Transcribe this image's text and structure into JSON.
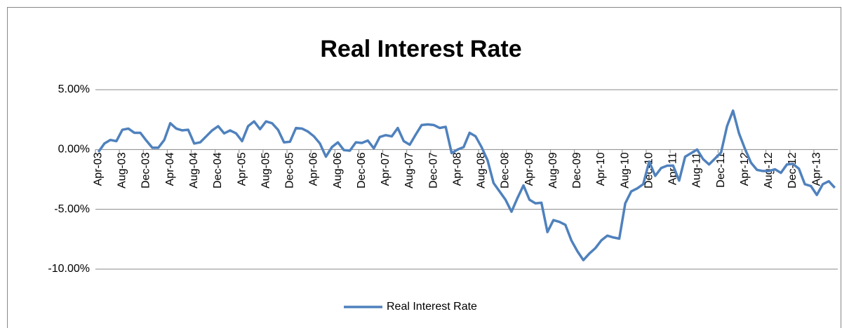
{
  "chart_data": {
    "type": "line",
    "title": "Real Interest Rate",
    "categories": [
      "Apr-03",
      null,
      null,
      null,
      "Aug-03",
      null,
      null,
      null,
      "Dec-03",
      null,
      null,
      null,
      "Apr-04",
      null,
      null,
      null,
      "Aug-04",
      null,
      null,
      null,
      "Dec-04",
      null,
      null,
      null,
      "Apr-05",
      null,
      null,
      null,
      "Aug-05",
      null,
      null,
      null,
      "Dec-05",
      null,
      null,
      null,
      "Apr-06",
      null,
      null,
      null,
      "Aug-06",
      null,
      null,
      null,
      "Dec-06",
      null,
      null,
      null,
      "Apr-07",
      null,
      null,
      null,
      "Aug-07",
      null,
      null,
      null,
      "Dec-07",
      null,
      null,
      null,
      "Apr-08",
      null,
      null,
      null,
      "Aug-08",
      null,
      null,
      null,
      "Dec-08",
      null,
      null,
      null,
      "Apr-09",
      null,
      null,
      null,
      "Aug-09",
      null,
      null,
      null,
      "Dec-09",
      null,
      null,
      null,
      "Apr-10",
      null,
      null,
      null,
      "Aug-10",
      null,
      null,
      null,
      "Dec-10",
      null,
      null,
      null,
      "Apr-11",
      null,
      null,
      null,
      "Aug-11",
      null,
      null,
      null,
      "Dec-11",
      null,
      null,
      null,
      "Apr-12",
      null,
      null,
      null,
      "Aug-12",
      null,
      null,
      null,
      "Dec-12",
      null,
      null,
      null,
      "Apr-13",
      null,
      null,
      null
    ],
    "series": [
      {
        "name": "Real Interest Rate",
        "color": "#4f81bd",
        "values": [
          -0.2,
          0.5,
          0.8,
          0.7,
          1.65,
          1.75,
          1.4,
          1.4,
          0.75,
          0.15,
          0.15,
          0.8,
          2.2,
          1.75,
          1.6,
          1.65,
          0.5,
          0.6,
          1.1,
          1.6,
          1.95,
          1.35,
          1.6,
          1.35,
          0.7,
          1.95,
          2.35,
          1.7,
          2.35,
          2.2,
          1.65,
          0.6,
          0.65,
          1.8,
          1.75,
          1.5,
          1.1,
          0.5,
          -0.6,
          0.2,
          0.6,
          -0.05,
          -0.1,
          0.6,
          0.55,
          0.75,
          0.1,
          1.05,
          1.2,
          1.1,
          1.8,
          0.7,
          0.4,
          1.25,
          2.05,
          2.1,
          2.05,
          1.8,
          1.9,
          -0.3,
          0,
          0.2,
          1.4,
          1.1,
          0.2,
          -0.9,
          -2.8,
          -3.5,
          -4.2,
          -5.2,
          -4.05,
          -3.0,
          -4.2,
          -4.5,
          -4.45,
          -6.9,
          -5.9,
          -6.05,
          -6.3,
          -7.6,
          -8.5,
          -9.25,
          -8.7,
          -8.25,
          -7.6,
          -7.2,
          -7.35,
          -7.45,
          -4.5,
          -3.5,
          -3.25,
          -2.9,
          -1.0,
          -2.2,
          -1.55,
          -1.35,
          -1.35,
          -2.6,
          -0.6,
          -0.3,
          0,
          -0.8,
          -1.25,
          -0.75,
          -0.25,
          1.95,
          3.25,
          1.35,
          0.05,
          -1.1,
          -1.7,
          -1.8,
          -1.8,
          -1.65,
          -1.95,
          -1.25,
          -1.2,
          -1.6,
          -2.9,
          -3.05,
          -3.8,
          -2.9,
          -2.65,
          -3.2
        ]
      }
    ],
    "ylim": [
      -10,
      5
    ],
    "yticks": [
      {
        "value": 5,
        "label": "5.00%"
      },
      {
        "value": 0,
        "label": "0.00%"
      },
      {
        "value": -5,
        "label": "-5.00%"
      },
      {
        "value": -10,
        "label": "-10.00%"
      }
    ],
    "grid": true,
    "legend": "bottom"
  }
}
